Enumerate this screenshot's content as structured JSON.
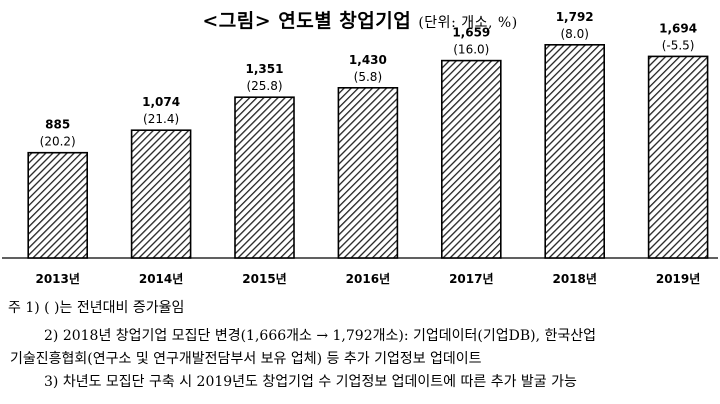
{
  "title": "<그림> 연도별 창업기업",
  "subtitle": "(단위: 개소, %)",
  "chart_data": {
    "type": "bar",
    "categories": [
      "2013년",
      "2014년",
      "2015년",
      "2016년",
      "2017년",
      "2018년",
      "2019년"
    ],
    "values": [
      885,
      1074,
      1351,
      1430,
      1659,
      1792,
      1694
    ],
    "value_labels": [
      "885",
      "1,074",
      "1,351",
      "1,430",
      "1,659",
      "1,792",
      "1,694"
    ],
    "growth_labels": [
      "(20.2)",
      "(21.4)",
      "(25.8)",
      "(5.8)",
      "(16.0)",
      "(8.0)",
      "(-5.5)"
    ],
    "ylim": [
      0,
      2000
    ],
    "bar_style": "diagonal-hatch",
    "grid": false
  },
  "notes": [
    "주 1) (   )는 전년대비 증가율임",
    "2) 2018년 창업기업 모집단 변경(1,666개소 → 1,792개소): 기업데이터(기업DB), 한국산업",
    "기술진흥협회(연구소 및 연구개발전담부서 보유 업체) 등 추가 기업정보 업데이트",
    "3) 차년도 모집단 구축 시 2019년도 창업기업 수 기업정보 업데이트에 따른 추가 발굴 가능"
  ]
}
